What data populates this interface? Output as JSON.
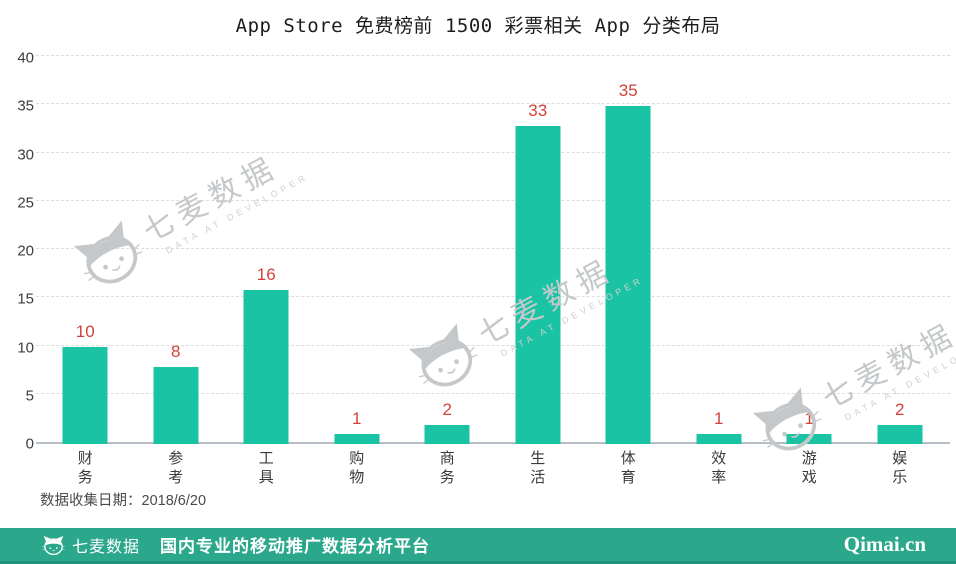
{
  "chart_data": {
    "type": "bar",
    "title": "App Store 免费榜前 1500 彩票相关 App 分类布局",
    "categories": [
      "财务",
      "参考",
      "工具",
      "购物",
      "商务",
      "生活",
      "体育",
      "效率",
      "游戏",
      "娱乐"
    ],
    "values": [
      10,
      8,
      16,
      1,
      2,
      33,
      35,
      1,
      1,
      2
    ],
    "xlabel": "",
    "ylabel": "",
    "ylim": [
      0,
      40
    ],
    "yticks": [
      0,
      5,
      10,
      15,
      20,
      25,
      30,
      35,
      40
    ],
    "grid": "horizontal-dashed",
    "legend": "none",
    "bar_color": "#19c3a3",
    "value_label_color": "#d2423c"
  },
  "note": {
    "date_label": "数据收集日期：2018/6/20"
  },
  "watermark": {
    "text": "七麦数据",
    "subtext": "DATA AT DEVELOPER"
  },
  "footer": {
    "brand": "七麦数据",
    "tagline": "国内专业的移动推广数据分析平台",
    "site": "Qimai.cn",
    "background": "#2ba88c"
  }
}
